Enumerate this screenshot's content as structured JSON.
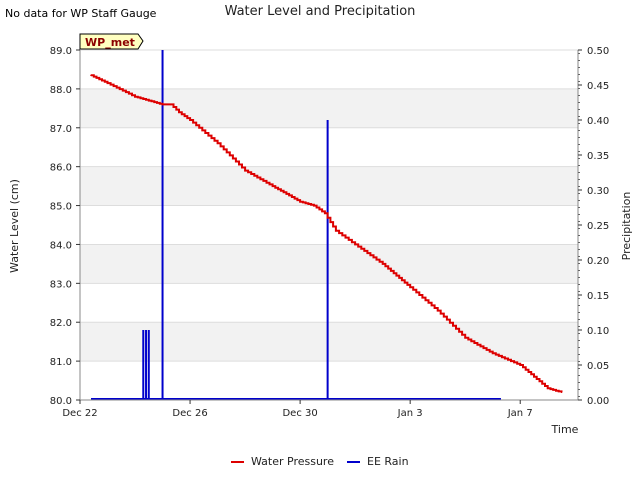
{
  "notice": "No data for WP Staff Gauge",
  "chart_data": {
    "type": "line",
    "title": "Water Level and Precipitation",
    "xlabel": "Time",
    "ylabel_left": "Water Level (cm)",
    "ylabel_right": "Precipitation",
    "badge": "WP_met",
    "colors": {
      "water": "#dd0000",
      "rain": "#0000cc",
      "band": "#f2f2f2",
      "grid": "#dddddd"
    },
    "x_ticks": [
      {
        "day": 0,
        "label": "Dec 22"
      },
      {
        "day": 4,
        "label": "Dec 26"
      },
      {
        "day": 8,
        "label": "Dec 30"
      },
      {
        "day": 12,
        "label": "Jan 3"
      },
      {
        "day": 16,
        "label": "Jan 7"
      }
    ],
    "xlim_days": [
      0,
      18.1
    ],
    "ylim_left": [
      80.0,
      89.0
    ],
    "yticks_left": [
      "80.0",
      "81.0",
      "82.0",
      "83.0",
      "84.0",
      "85.0",
      "86.0",
      "87.0",
      "88.0",
      "89.0"
    ],
    "ylim_right": [
      0.0,
      0.5
    ],
    "yticks_right": [
      "0.00",
      "0.05",
      "0.10",
      "0.15",
      "0.20",
      "0.25",
      "0.30",
      "0.35",
      "0.40",
      "0.45",
      "0.50"
    ],
    "series": [
      {
        "name": "Water Pressure",
        "axis": "left",
        "x_days": [
          0.4,
          1.0,
          2.0,
          2.5,
          3.0,
          3.3,
          3.6,
          4.0,
          5.0,
          6.0,
          7.0,
          7.5,
          8.0,
          8.5,
          8.9,
          9.3,
          10.0,
          11.0,
          11.5,
          12.0,
          13.0,
          14.0,
          15.0,
          16.0,
          16.5,
          17.0,
          17.5
        ],
        "values": [
          88.35,
          88.15,
          87.8,
          87.7,
          87.6,
          87.6,
          87.4,
          87.2,
          86.6,
          85.9,
          85.5,
          85.3,
          85.1,
          85.0,
          84.8,
          84.35,
          84.0,
          83.5,
          83.2,
          82.9,
          82.3,
          81.6,
          81.2,
          80.9,
          80.6,
          80.3,
          80.2
        ]
      },
      {
        "name": "EE Rain",
        "axis": "right",
        "x_start_day": 0.4,
        "x_end_day": 15.3,
        "events": [
          {
            "day": 2.3,
            "value": 0.1
          },
          {
            "day": 2.4,
            "value": 0.1
          },
          {
            "day": 2.5,
            "value": 0.1
          },
          {
            "day": 3.0,
            "value": 0.5
          },
          {
            "day": 9.0,
            "value": 0.4
          }
        ]
      }
    ],
    "legend": [
      "Water Pressure",
      "EE Rain"
    ],
    "legend_position": "bottom"
  }
}
